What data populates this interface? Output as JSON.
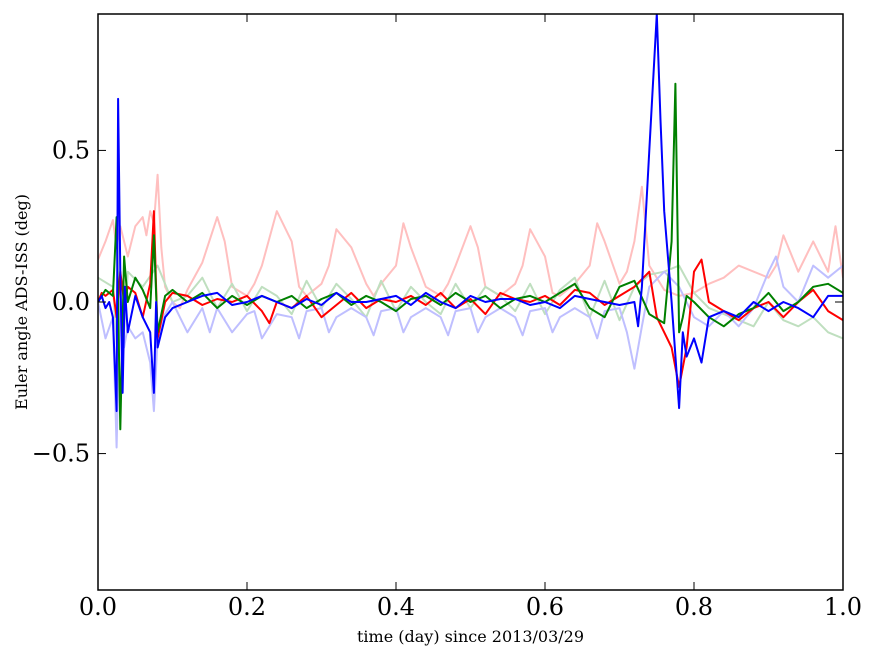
{
  "chart_data": {
    "type": "line",
    "title": "",
    "xlabel": "time (day) since 2013/03/29",
    "ylabel": "Euler angle ADS-ISS (deg)",
    "xlim": [
      0.0,
      1.0
    ],
    "ylim": [
      -0.95,
      0.95
    ],
    "x_ticks": [
      0.0,
      0.2,
      0.4,
      0.6,
      0.8,
      1.0
    ],
    "x_tick_labels": [
      "0.0",
      "0.2",
      "0.4",
      "0.6",
      "0.8",
      "1.0"
    ],
    "y_ticks": [
      0.5,
      0.0,
      -0.5
    ],
    "y_tick_labels": [
      "0.5",
      "0.0",
      "−0.5"
    ],
    "grid": false,
    "legend": "none",
    "series": [
      {
        "color": "#ffbfbf",
        "x": [
          0.0,
          0.01,
          0.02,
          0.025,
          0.03,
          0.035,
          0.04,
          0.05,
          0.06,
          0.065,
          0.07,
          0.075,
          0.08,
          0.085,
          0.09,
          0.1,
          0.11,
          0.12,
          0.14,
          0.16,
          0.17,
          0.18,
          0.2,
          0.21,
          0.22,
          0.24,
          0.26,
          0.27,
          0.28,
          0.3,
          0.31,
          0.32,
          0.34,
          0.36,
          0.37,
          0.38,
          0.4,
          0.41,
          0.42,
          0.44,
          0.46,
          0.47,
          0.48,
          0.5,
          0.51,
          0.52,
          0.54,
          0.56,
          0.57,
          0.58,
          0.6,
          0.61,
          0.62,
          0.64,
          0.66,
          0.67,
          0.68,
          0.7,
          0.71,
          0.72,
          0.73,
          0.74,
          0.76,
          0.78,
          0.8,
          0.82,
          0.84,
          0.86,
          0.9,
          0.91,
          0.92,
          0.94,
          0.95,
          0.96,
          0.97,
          0.98,
          0.99,
          1.0
        ],
        "y": [
          0.14,
          0.2,
          0.27,
          0.18,
          0.25,
          0.2,
          0.15,
          0.25,
          0.28,
          0.22,
          0.3,
          0.26,
          0.42,
          0.18,
          0.05,
          0.0,
          -0.02,
          0.04,
          0.13,
          0.28,
          0.2,
          0.05,
          0.02,
          0.06,
          0.12,
          0.3,
          0.2,
          0.05,
          0.02,
          0.06,
          0.12,
          0.24,
          0.18,
          0.06,
          0.02,
          0.06,
          0.12,
          0.26,
          0.18,
          0.05,
          0.02,
          0.06,
          0.12,
          0.25,
          0.18,
          0.05,
          0.02,
          0.06,
          0.12,
          0.24,
          0.15,
          0.03,
          0.02,
          0.06,
          0.12,
          0.26,
          0.2,
          0.06,
          0.1,
          0.2,
          0.38,
          0.12,
          0.04,
          0.02,
          0.03,
          0.06,
          0.08,
          0.12,
          0.08,
          0.12,
          0.22,
          0.1,
          0.15,
          0.2,
          0.15,
          0.1,
          0.25,
          0.08
        ]
      },
      {
        "color": "#bfdfbf",
        "x": [
          0.0,
          0.02,
          0.03,
          0.04,
          0.06,
          0.08,
          0.1,
          0.12,
          0.14,
          0.16,
          0.18,
          0.2,
          0.22,
          0.24,
          0.26,
          0.28,
          0.3,
          0.32,
          0.34,
          0.36,
          0.38,
          0.4,
          0.42,
          0.44,
          0.46,
          0.48,
          0.5,
          0.52,
          0.54,
          0.56,
          0.58,
          0.6,
          0.62,
          0.64,
          0.66,
          0.68,
          0.7,
          0.72,
          0.74,
          0.76,
          0.78,
          0.8,
          0.82,
          0.84,
          0.86,
          0.88,
          0.9,
          0.92,
          0.94,
          0.96,
          0.98,
          1.0
        ],
        "y": [
          0.08,
          0.05,
          -0.3,
          0.1,
          0.05,
          0.12,
          0.0,
          0.02,
          0.08,
          -0.02,
          0.06,
          -0.03,
          0.05,
          0.02,
          -0.04,
          0.07,
          -0.02,
          0.06,
          0.01,
          -0.05,
          0.07,
          -0.03,
          0.05,
          0.0,
          -0.04,
          0.06,
          -0.02,
          0.05,
          0.02,
          -0.03,
          0.06,
          -0.04,
          0.04,
          0.08,
          -0.05,
          0.07,
          -0.06,
          0.05,
          0.09,
          0.1,
          0.12,
          0.03,
          -0.02,
          -0.04,
          -0.06,
          -0.08,
          0.0,
          -0.06,
          -0.08,
          -0.05,
          -0.1,
          -0.12
        ]
      },
      {
        "color": "#bfbfff",
        "x": [
          0.0,
          0.01,
          0.02,
          0.025,
          0.03,
          0.035,
          0.04,
          0.05,
          0.06,
          0.07,
          0.075,
          0.08,
          0.09,
          0.1,
          0.11,
          0.12,
          0.14,
          0.15,
          0.16,
          0.18,
          0.2,
          0.21,
          0.22,
          0.24,
          0.26,
          0.27,
          0.28,
          0.3,
          0.31,
          0.32,
          0.34,
          0.36,
          0.37,
          0.38,
          0.4,
          0.41,
          0.42,
          0.44,
          0.46,
          0.47,
          0.48,
          0.5,
          0.51,
          0.52,
          0.54,
          0.56,
          0.57,
          0.58,
          0.6,
          0.61,
          0.62,
          0.64,
          0.66,
          0.67,
          0.68,
          0.7,
          0.71,
          0.72,
          0.73,
          0.74,
          0.76,
          0.78,
          0.8,
          0.82,
          0.84,
          0.86,
          0.88,
          0.9,
          0.91,
          0.92,
          0.94,
          0.96,
          0.98,
          1.0
        ],
        "y": [
          0.0,
          -0.12,
          -0.05,
          -0.48,
          0.05,
          -0.15,
          -0.08,
          -0.12,
          -0.1,
          -0.2,
          -0.36,
          -0.12,
          -0.04,
          0.0,
          -0.05,
          -0.1,
          -0.02,
          -0.1,
          -0.02,
          -0.1,
          -0.04,
          -0.03,
          -0.12,
          -0.04,
          -0.05,
          -0.12,
          -0.03,
          -0.02,
          -0.1,
          -0.05,
          -0.02,
          -0.05,
          -0.11,
          -0.03,
          -0.02,
          -0.1,
          -0.05,
          -0.02,
          -0.05,
          -0.11,
          -0.03,
          -0.02,
          -0.1,
          -0.05,
          -0.02,
          -0.05,
          -0.11,
          -0.03,
          -0.02,
          -0.1,
          -0.05,
          -0.02,
          -0.05,
          -0.12,
          -0.03,
          -0.02,
          -0.1,
          -0.22,
          -0.08,
          0.05,
          0.1,
          0.05,
          -0.05,
          -0.08,
          -0.03,
          -0.08,
          -0.02,
          0.1,
          0.15,
          0.05,
          0.0,
          0.12,
          0.08,
          0.12
        ]
      },
      {
        "color": "#ff0000",
        "x": [
          0.0,
          0.005,
          0.01,
          0.02,
          0.025,
          0.03,
          0.035,
          0.04,
          0.05,
          0.06,
          0.07,
          0.075,
          0.08,
          0.09,
          0.1,
          0.12,
          0.14,
          0.16,
          0.18,
          0.2,
          0.22,
          0.23,
          0.24,
          0.26,
          0.28,
          0.3,
          0.32,
          0.34,
          0.36,
          0.38,
          0.4,
          0.42,
          0.44,
          0.46,
          0.48,
          0.5,
          0.52,
          0.54,
          0.56,
          0.58,
          0.6,
          0.62,
          0.64,
          0.66,
          0.68,
          0.7,
          0.72,
          0.74,
          0.75,
          0.76,
          0.77,
          0.78,
          0.79,
          0.8,
          0.81,
          0.82,
          0.84,
          0.86,
          0.88,
          0.9,
          0.92,
          0.94,
          0.96,
          0.98,
          1.0
        ],
        "y": [
          0.0,
          0.03,
          0.02,
          0.04,
          -0.05,
          0.1,
          0.0,
          0.05,
          0.03,
          -0.05,
          0.06,
          0.3,
          -0.12,
          0.0,
          0.03,
          0.02,
          -0.01,
          0.01,
          0.0,
          0.02,
          -0.03,
          -0.07,
          0.0,
          -0.02,
          0.02,
          -0.05,
          -0.01,
          0.03,
          -0.02,
          0.01,
          0.0,
          0.02,
          -0.01,
          0.03,
          -0.02,
          0.01,
          -0.04,
          0.03,
          0.01,
          0.0,
          0.02,
          -0.01,
          0.04,
          0.03,
          -0.01,
          0.02,
          0.05,
          0.1,
          -0.05,
          -0.1,
          -0.15,
          -0.28,
          -0.15,
          0.1,
          0.14,
          0.0,
          -0.03,
          -0.06,
          -0.02,
          0.0,
          -0.05,
          0.0,
          0.04,
          -0.03,
          -0.06
        ]
      },
      {
        "color": "#008000",
        "x": [
          0.0,
          0.01,
          0.02,
          0.025,
          0.03,
          0.035,
          0.04,
          0.05,
          0.06,
          0.07,
          0.075,
          0.08,
          0.09,
          0.1,
          0.12,
          0.14,
          0.16,
          0.18,
          0.2,
          0.22,
          0.24,
          0.26,
          0.28,
          0.3,
          0.32,
          0.34,
          0.36,
          0.38,
          0.4,
          0.42,
          0.44,
          0.46,
          0.48,
          0.5,
          0.52,
          0.54,
          0.56,
          0.58,
          0.6,
          0.62,
          0.64,
          0.66,
          0.68,
          0.7,
          0.72,
          0.74,
          0.76,
          0.77,
          0.775,
          0.78,
          0.785,
          0.79,
          0.8,
          0.82,
          0.84,
          0.86,
          0.88,
          0.9,
          0.92,
          0.94,
          0.96,
          0.98,
          1.0
        ],
        "y": [
          0.0,
          0.04,
          0.02,
          0.28,
          -0.42,
          0.15,
          0.0,
          0.08,
          0.04,
          -0.02,
          0.22,
          -0.1,
          0.02,
          0.04,
          0.0,
          0.03,
          -0.02,
          0.02,
          -0.01,
          0.02,
          0.0,
          0.02,
          -0.02,
          0.01,
          0.03,
          -0.01,
          0.02,
          0.0,
          -0.03,
          0.01,
          0.02,
          -0.01,
          0.03,
          0.0,
          0.02,
          -0.02,
          0.01,
          0.02,
          0.0,
          0.03,
          0.06,
          -0.02,
          -0.05,
          0.05,
          0.07,
          -0.04,
          -0.07,
          0.2,
          0.72,
          -0.1,
          -0.05,
          0.02,
          0.0,
          -0.05,
          -0.08,
          -0.04,
          -0.02,
          0.03,
          -0.03,
          0.0,
          0.05,
          0.06,
          0.03
        ]
      },
      {
        "color": "#0000ff",
        "x": [
          0.0,
          0.005,
          0.01,
          0.015,
          0.02,
          0.025,
          0.027,
          0.03,
          0.033,
          0.036,
          0.04,
          0.05,
          0.06,
          0.07,
          0.075,
          0.078,
          0.08,
          0.09,
          0.1,
          0.12,
          0.14,
          0.16,
          0.18,
          0.2,
          0.22,
          0.24,
          0.26,
          0.28,
          0.3,
          0.32,
          0.34,
          0.36,
          0.38,
          0.4,
          0.42,
          0.44,
          0.46,
          0.48,
          0.5,
          0.52,
          0.54,
          0.56,
          0.58,
          0.6,
          0.62,
          0.64,
          0.66,
          0.68,
          0.7,
          0.72,
          0.725,
          0.73,
          0.74,
          0.75,
          0.755,
          0.76,
          0.77,
          0.78,
          0.785,
          0.79,
          0.8,
          0.81,
          0.82,
          0.84,
          0.86,
          0.88,
          0.9,
          0.92,
          0.94,
          0.96,
          0.98,
          1.0
        ],
        "y": [
          0.0,
          0.02,
          -0.02,
          0.0,
          -0.05,
          -0.36,
          0.67,
          0.1,
          -0.3,
          0.05,
          -0.1,
          0.02,
          -0.05,
          -0.1,
          -0.3,
          0.0,
          -0.15,
          -0.05,
          -0.02,
          0.0,
          0.02,
          0.03,
          -0.01,
          0.0,
          0.02,
          0.0,
          -0.02,
          0.01,
          -0.01,
          0.03,
          0.0,
          0.0,
          0.01,
          0.02,
          -0.01,
          0.03,
          0.0,
          -0.02,
          0.02,
          0.0,
          0.01,
          0.01,
          -0.01,
          0.0,
          -0.02,
          0.02,
          0.01,
          0.0,
          -0.01,
          0.0,
          -0.08,
          0.05,
          0.5,
          0.95,
          0.6,
          0.3,
          0.0,
          -0.35,
          -0.1,
          -0.18,
          -0.12,
          -0.2,
          -0.05,
          -0.03,
          -0.05,
          0.0,
          -0.03,
          0.0,
          -0.02,
          -0.05,
          0.02,
          0.02
        ]
      }
    ]
  }
}
